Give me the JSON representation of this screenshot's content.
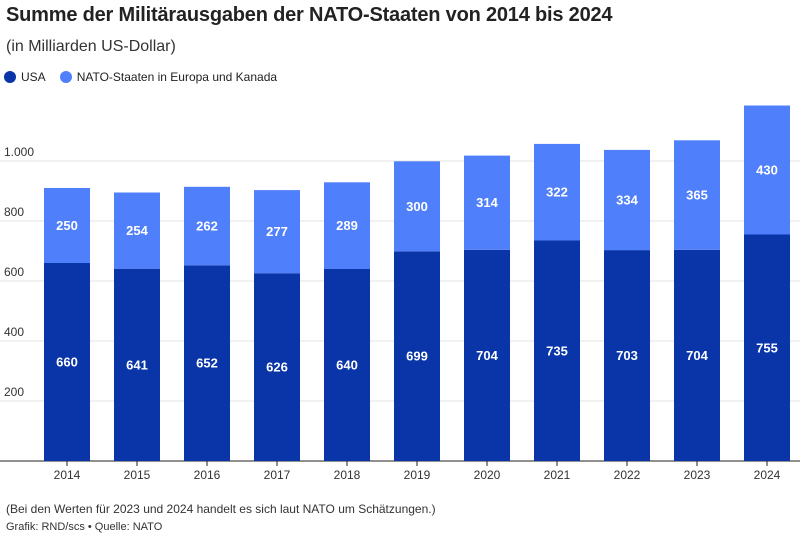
{
  "chart_data": {
    "type": "bar",
    "stacked": true,
    "title": "Summe der Militärausgaben der NATO-Staaten von 2014 bis 2024",
    "subtitle": "(in Milliarden US-Dollar)",
    "categories": [
      "2014",
      "2015",
      "2016",
      "2017",
      "2018",
      "2019",
      "2020",
      "2021",
      "2022",
      "2023",
      "2024"
    ],
    "series": [
      {
        "name": "USA",
        "color": "#0a35a8",
        "values": [
          660,
          641,
          652,
          626,
          640,
          699,
          704,
          735,
          703,
          704,
          755
        ]
      },
      {
        "name": "NATO-Staaten in Europa und Kanada",
        "color": "#4f7ffa",
        "values": [
          250,
          254,
          262,
          277,
          289,
          300,
          314,
          322,
          334,
          365,
          430
        ]
      }
    ],
    "yticks": [
      200,
      400,
      600,
      800,
      1000
    ],
    "ytick_labels": [
      "200",
      "400",
      "600",
      "800",
      "1.000"
    ],
    "ylim": [
      0,
      1200
    ],
    "grid": true,
    "legend_position": "top-left"
  },
  "footer": {
    "note": "(Bei den Werten für 2023 und 2024 handelt es sich laut NATO um Schätzungen.)",
    "source": "Grafik: RND/scs • Quelle: NATO"
  }
}
